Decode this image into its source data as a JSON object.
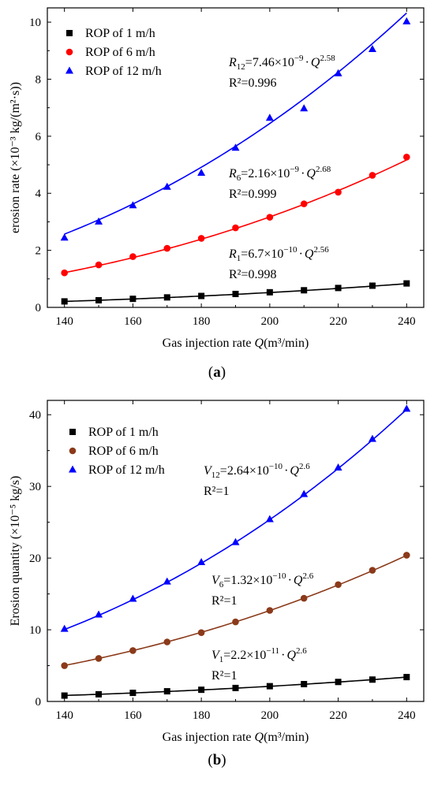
{
  "chart_data": [
    {
      "type": "scatter",
      "panel_label": "(a)",
      "xlabel_prefix": "Gas injection rate ",
      "xlabel_var": "Q",
      "xlabel_unit": "(m³/min)",
      "ylabel": "erosion rate (×10⁻³ kg/(m²·s))",
      "xlim": [
        135,
        245
      ],
      "ylim": [
        0,
        10.5
      ],
      "xticks": [
        140,
        160,
        180,
        200,
        220,
        240
      ],
      "yticks": [
        0,
        2,
        4,
        6,
        8,
        10
      ],
      "x": [
        140,
        150,
        160,
        170,
        180,
        190,
        200,
        210,
        220,
        230,
        240
      ],
      "series": [
        {
          "name": "ROP of 1 m/h",
          "marker": "square",
          "color": "#000000",
          "fit_color": "#000000",
          "values": [
            0.21,
            0.25,
            0.3,
            0.35,
            0.4,
            0.47,
            0.53,
            0.6,
            0.68,
            0.76,
            0.84
          ],
          "fit": {
            "a": 6.7e-10,
            "b": 2.56,
            "scale": 1000
          }
        },
        {
          "name": "ROP of 6 m/h",
          "marker": "circle",
          "color": "#ff0000",
          "fit_color": "#ff0000",
          "values": [
            1.21,
            1.49,
            1.78,
            2.07,
            2.42,
            2.79,
            3.16,
            3.63,
            4.04,
            4.63,
            5.27
          ],
          "fit": {
            "a": 2.16e-09,
            "b": 2.68,
            "scale": 1000
          }
        },
        {
          "name": "ROP of 12 m/h",
          "marker": "triangle",
          "color": "#0000ff",
          "fit_color": "#0000ff",
          "values": [
            2.44,
            3.0,
            3.57,
            4.22,
            4.71,
            5.59,
            6.64,
            6.97,
            8.2,
            9.05,
            10.02
          ],
          "fit": {
            "a": 7.46e-09,
            "b": 2.58,
            "scale": 1000
          }
        }
      ],
      "annotations": [
        {
          "var": "R",
          "sub": "12",
          "coef": "7.46×10",
          "exp": "−9",
          "pexp": "2.58",
          "r2": "R²=0.996"
        },
        {
          "var": "R",
          "sub": "6",
          "coef": "2.16×10",
          "exp": "−9",
          "pexp": "2.68",
          "r2": "R²=0.999"
        },
        {
          "var": "R",
          "sub": "1",
          "coef": "6.7×10",
          "exp": "−10",
          "pexp": "2.56",
          "r2": "R²=0.998"
        }
      ]
    },
    {
      "type": "scatter",
      "panel_label": "(b)",
      "xlabel_prefix": "Gas injection rate ",
      "xlabel_var": "Q",
      "xlabel_unit": "(m³/min)",
      "ylabel": "Erosion quantity (×10⁻⁵ kg/s)",
      "xlim": [
        135,
        245
      ],
      "ylim": [
        0,
        42
      ],
      "xticks": [
        140,
        160,
        180,
        200,
        220,
        240
      ],
      "yticks": [
        0,
        10,
        20,
        30,
        40
      ],
      "x": [
        140,
        150,
        160,
        170,
        180,
        190,
        200,
        210,
        220,
        230,
        240
      ],
      "series": [
        {
          "name": "ROP of 1 m/h",
          "marker": "square",
          "color": "#000000",
          "fit_color": "#000000",
          "values": [
            0.82,
            1.0,
            1.2,
            1.42,
            1.63,
            1.88,
            2.13,
            2.42,
            2.72,
            3.05,
            3.4
          ],
          "fit": {
            "a": 2.2e-11,
            "b": 2.6,
            "scale": 100000
          }
        },
        {
          "name": "ROP of 6 m/h",
          "marker": "circle",
          "color": "#8b3a1a",
          "fit_color": "#8b3a1a",
          "values": [
            5.0,
            6.0,
            7.1,
            8.3,
            9.6,
            11.1,
            12.7,
            14.4,
            16.3,
            18.3,
            20.4
          ],
          "fit": {
            "a": 1.32e-10,
            "b": 2.6,
            "scale": 100000
          }
        },
        {
          "name": "ROP of 12 m/h",
          "marker": "triangle",
          "color": "#0000ff",
          "fit_color": "#0000ff",
          "values": [
            10.1,
            12.1,
            14.3,
            16.7,
            19.4,
            22.2,
            25.4,
            28.9,
            32.6,
            36.6,
            40.8
          ],
          "fit": {
            "a": 2.64e-10,
            "b": 2.6,
            "scale": 100000
          }
        }
      ],
      "annotations": [
        {
          "var": "V",
          "sub": "12",
          "coef": "2.64×10",
          "exp": "−10",
          "pexp": "2.6",
          "r2": "R²=1"
        },
        {
          "var": "V",
          "sub": "6",
          "coef": "1.32×10",
          "exp": "−10",
          "pexp": "2.6",
          "r2": "R²=1"
        },
        {
          "var": "V",
          "sub": "1",
          "coef": "2.2×10",
          "exp": "−11",
          "pexp": "2.6",
          "r2": "R²=1"
        }
      ]
    }
  ]
}
